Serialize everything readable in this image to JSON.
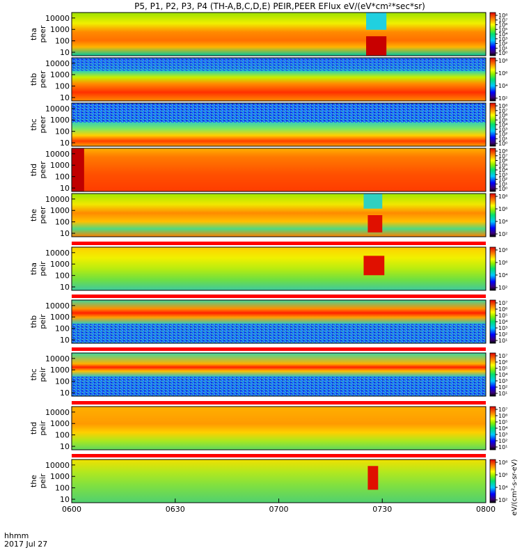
{
  "title": "P5, P1, P2, P3, P4 (TH-A,B,C,D,E) PEIR,PEER EFlux eV/(eV*cm²*sec*sr)",
  "colorbar_unit": "eV/(cm²-s-sr-eV)",
  "chart_data": {
    "type": "heatmap",
    "title": "P5, P1, P2, P3, P4 (TH-A,B,C,D,E) PEIR,PEER EFlux eV/(eV*cm²*sec*sr)",
    "x_axis": {
      "label_line1": "hhmm",
      "label_line2": "2017 Jul 27",
      "ticks": [
        "0600",
        "0630",
        "0700",
        "0730",
        "0800"
      ],
      "range": [
        "06:00",
        "08:00"
      ]
    },
    "y_axis": {
      "scale": "log",
      "range": [
        5,
        30000
      ]
    },
    "panels": [
      {
        "name": "tha peer",
        "ylabel_line1": "tha",
        "ylabel_line2": "peer",
        "yticks": [
          "10000",
          "1000",
          "100",
          "10"
        ],
        "cbar_ticks": [
          "10⁸",
          "10⁷",
          "10⁶",
          "10⁵",
          "10⁴",
          "10³",
          "10²",
          "10¹",
          "10⁰"
        ]
      },
      {
        "name": "thb peer",
        "ylabel_line1": "thb",
        "ylabel_line2": "peer",
        "yticks": [
          "10000",
          "1000",
          "100",
          "10"
        ],
        "cbar_ticks": [
          "10⁸",
          "10⁶",
          "10⁴",
          "10²"
        ]
      },
      {
        "name": "thc peer",
        "ylabel_line1": "thc",
        "ylabel_line2": "peer",
        "yticks": [
          "10000",
          "1000",
          "100",
          "10"
        ],
        "cbar_ticks": [
          "10⁸",
          "10⁷",
          "10⁶",
          "10⁵",
          "10⁴",
          "10³",
          "10²",
          "10¹",
          "10⁰"
        ]
      },
      {
        "name": "thd peer",
        "ylabel_line1": "thd",
        "ylabel_line2": "peer",
        "yticks": [
          "10000",
          "1000",
          "100",
          "10"
        ],
        "cbar_ticks": [
          "10⁸",
          "10⁷",
          "10⁶",
          "10⁵",
          "10⁴",
          "10³",
          "10²",
          "10¹",
          "10⁰"
        ]
      },
      {
        "name": "the peer",
        "ylabel_line1": "the",
        "ylabel_line2": "peer",
        "yticks": [
          "10000",
          "1000",
          "100",
          "10"
        ],
        "cbar_ticks": [
          "10⁸",
          "10⁶",
          "10⁴",
          "10²"
        ]
      },
      {
        "name": "tha peir",
        "ylabel_line1": "tha",
        "ylabel_line2": "peir",
        "yticks": [
          "10000",
          "1000",
          "100",
          "10"
        ],
        "cbar_ticks": [
          "10⁸",
          "10⁶",
          "10⁴",
          "10²"
        ]
      },
      {
        "name": "thb peir",
        "ylabel_line1": "thb",
        "ylabel_line2": "peir",
        "yticks": [
          "10000",
          "1000",
          "100",
          "10"
        ],
        "cbar_ticks": [
          "10⁷",
          "10⁶",
          "10⁵",
          "10⁴",
          "10³",
          "10²",
          "10¹"
        ]
      },
      {
        "name": "thc peir",
        "ylabel_line1": "thc",
        "ylabel_line2": "peir",
        "yticks": [
          "10000",
          "1000",
          "100",
          "10"
        ],
        "cbar_ticks": [
          "10⁷",
          "10⁶",
          "10⁵",
          "10⁴",
          "10³",
          "10²",
          "10¹"
        ]
      },
      {
        "name": "thd peir",
        "ylabel_line1": "thd",
        "ylabel_line2": "peir",
        "yticks": [
          "10000",
          "1000",
          "100",
          "10"
        ],
        "cbar_ticks": [
          "10⁷",
          "10⁶",
          "10⁵",
          "10⁴",
          "10³",
          "10²",
          "10¹"
        ]
      },
      {
        "name": "the peir",
        "ylabel_line1": "the",
        "ylabel_line2": "peir",
        "yticks": [
          "10000",
          "1000",
          "100",
          "10"
        ],
        "cbar_ticks": [
          "10⁸",
          "10⁶",
          "10⁴",
          "10²"
        ]
      }
    ]
  }
}
